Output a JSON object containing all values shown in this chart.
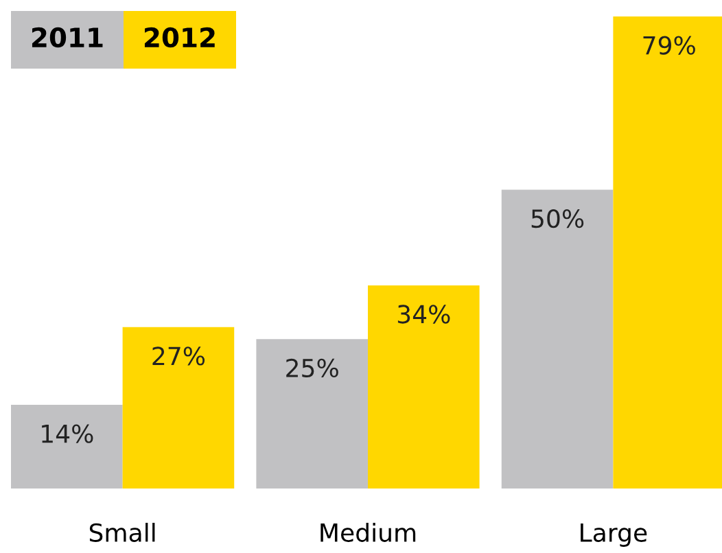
{
  "chart_data": {
    "type": "bar",
    "categories": [
      "Small",
      "Medium",
      "Large"
    ],
    "series": [
      {
        "name": "2011",
        "color": "#c1c1c3",
        "values": [
          14,
          25,
          50
        ],
        "value_labels": [
          "14%",
          "25%",
          "50%"
        ]
      },
      {
        "name": "2012",
        "color": "#ffd700",
        "values": [
          27,
          34,
          79
        ],
        "value_labels": [
          "27%",
          "34%",
          "79%"
        ]
      }
    ],
    "legend": "top left",
    "grid": false
  }
}
